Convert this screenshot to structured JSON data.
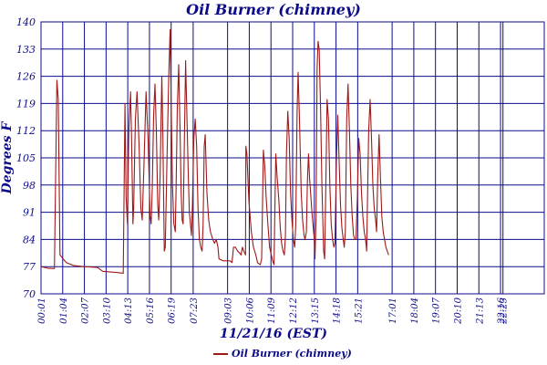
{
  "chart_data": {
    "type": "line",
    "title": "Oil Burner (chimney)",
    "ylabel": "Degrees F",
    "xlabel": "11/21/16 (EST)",
    "ylim": [
      70,
      140
    ],
    "yticks": [
      70,
      77,
      84,
      91,
      98,
      105,
      112,
      119,
      126,
      133,
      140
    ],
    "x_domain_minutes": [
      1,
      1463
    ],
    "xticks": [
      {
        "label": "00:01",
        "minute": 1
      },
      {
        "label": "01:04",
        "minute": 64
      },
      {
        "label": "02:07",
        "minute": 127
      },
      {
        "label": "03:10",
        "minute": 190
      },
      {
        "label": "04:13",
        "minute": 253
      },
      {
        "label": "05:16",
        "minute": 316
      },
      {
        "label": "06:19",
        "minute": 379
      },
      {
        "label": "07:23",
        "minute": 443
      },
      {
        "label": "09:03",
        "minute": 543
      },
      {
        "label": "10:06",
        "minute": 606
      },
      {
        "label": "11:09",
        "minute": 669
      },
      {
        "label": "12:12",
        "minute": 732
      },
      {
        "label": "13:15",
        "minute": 795
      },
      {
        "label": "14:18",
        "minute": 858
      },
      {
        "label": "15:21",
        "minute": 921
      },
      {
        "label": "17:01",
        "minute": 1021
      },
      {
        "label": "18:04",
        "minute": 1084
      },
      {
        "label": "19:07",
        "minute": 1147
      },
      {
        "label": "20:10",
        "minute": 1210
      },
      {
        "label": "21:13",
        "minute": 1273
      },
      {
        "label": "22:16",
        "minute": 1336
      },
      {
        "label": "22:23",
        "minute": 1343
      }
    ],
    "grid": true,
    "legend_position": "bottom-center",
    "series": [
      {
        "name": "Oil Burner (chimney)",
        "color": "#a01818",
        "points": [
          [
            1,
            77
          ],
          [
            20,
            76.6
          ],
          [
            37,
            76.5
          ],
          [
            40,
            76.5
          ],
          [
            47,
            125
          ],
          [
            51,
            120
          ],
          [
            56,
            80
          ],
          [
            65,
            79
          ],
          [
            75,
            78
          ],
          [
            95,
            77.3
          ],
          [
            125,
            77
          ],
          [
            165,
            76.8
          ],
          [
            180,
            75.8
          ],
          [
            220,
            75.5
          ],
          [
            240,
            75.3
          ],
          [
            245,
            119
          ],
          [
            248,
            95
          ],
          [
            252,
            88
          ],
          [
            256,
            112
          ],
          [
            261,
            122
          ],
          [
            264,
            110
          ],
          [
            268,
            88
          ],
          [
            270,
            92
          ],
          [
            275,
            115
          ],
          [
            280,
            122
          ],
          [
            286,
            108
          ],
          [
            291,
            92
          ],
          [
            295,
            89
          ],
          [
            300,
            103
          ],
          [
            306,
            122
          ],
          [
            312,
            110
          ],
          [
            318,
            90
          ],
          [
            321,
            88
          ],
          [
            324,
            97
          ],
          [
            328,
            116
          ],
          [
            332,
            124
          ],
          [
            336,
            112
          ],
          [
            340,
            93
          ],
          [
            343,
            89
          ],
          [
            347,
            100
          ],
          [
            352,
            126
          ],
          [
            355,
            110
          ],
          [
            359,
            81
          ],
          [
            362,
            82
          ],
          [
            367,
            105
          ],
          [
            372,
            126
          ],
          [
            376,
            138
          ],
          [
            379,
            120
          ],
          [
            383,
            98
          ],
          [
            387,
            88
          ],
          [
            391,
            86
          ],
          [
            393,
            95
          ],
          [
            397,
            118
          ],
          [
            401,
            129
          ],
          [
            405,
            112
          ],
          [
            408,
            96
          ],
          [
            411,
            89
          ],
          [
            414,
            88
          ],
          [
            418,
            112
          ],
          [
            421,
            130
          ],
          [
            425,
            115
          ],
          [
            429,
            100
          ],
          [
            432,
            91
          ],
          [
            435,
            88
          ],
          [
            438,
            85
          ],
          [
            441,
            93
          ],
          [
            445,
            110
          ],
          [
            449,
            115
          ],
          [
            453,
            108
          ],
          [
            457,
            92
          ],
          [
            461,
            84
          ],
          [
            465,
            82
          ],
          [
            469,
            81
          ],
          [
            472,
            88
          ],
          [
            475,
            108
          ],
          [
            478,
            111
          ],
          [
            483,
            96
          ],
          [
            488,
            89
          ],
          [
            493,
            86
          ],
          [
            500,
            84
          ],
          [
            505,
            83
          ],
          [
            510,
            84
          ],
          [
            515,
            82
          ],
          [
            518,
            79
          ],
          [
            530,
            78.5
          ],
          [
            550,
            78.5
          ],
          [
            556,
            78
          ],
          [
            560,
            82
          ],
          [
            566,
            82
          ],
          [
            572,
            81
          ],
          [
            578,
            80.5
          ],
          [
            582,
            80
          ],
          [
            586,
            82
          ],
          [
            590,
            81
          ],
          [
            595,
            80
          ],
          [
            596,
            108
          ],
          [
            599,
            106
          ],
          [
            605,
            94
          ],
          [
            612,
            86
          ],
          [
            618,
            82
          ],
          [
            625,
            80
          ],
          [
            630,
            78
          ],
          [
            638,
            77.5
          ],
          [
            642,
            79
          ],
          [
            647,
            107
          ],
          [
            651,
            103
          ],
          [
            655,
            95
          ],
          [
            660,
            88
          ],
          [
            665,
            82
          ],
          [
            670,
            80
          ],
          [
            674,
            78.5
          ],
          [
            678,
            77.5
          ],
          [
            680,
            90
          ],
          [
            683,
            106
          ],
          [
            687,
            100
          ],
          [
            692,
            94
          ],
          [
            696,
            87
          ],
          [
            700,
            83
          ],
          [
            704,
            81
          ],
          [
            708,
            80
          ],
          [
            711,
            85
          ],
          [
            714,
            106
          ],
          [
            718,
            117
          ],
          [
            722,
            110
          ],
          [
            726,
            96
          ],
          [
            730,
            89
          ],
          [
            734,
            84
          ],
          [
            738,
            82
          ],
          [
            741,
            88
          ],
          [
            745,
            117
          ],
          [
            748,
            127
          ],
          [
            752,
            114
          ],
          [
            757,
            96
          ],
          [
            761,
            89
          ],
          [
            765,
            85
          ],
          [
            768,
            84
          ],
          [
            772,
            86
          ],
          [
            775,
            99
          ],
          [
            778,
            106
          ],
          [
            781,
            100
          ],
          [
            785,
            95
          ],
          [
            789,
            90
          ],
          [
            793,
            86
          ],
          [
            795,
            84
          ],
          [
            797,
            79
          ],
          [
            800,
            90
          ],
          [
            803,
            128
          ],
          [
            806,
            135
          ],
          [
            809,
            133
          ],
          [
            813,
            118
          ],
          [
            817,
            98
          ],
          [
            820,
            88
          ],
          [
            822,
            81
          ],
          [
            825,
            79
          ],
          [
            828,
            95
          ],
          [
            832,
            120
          ],
          [
            836,
            115
          ],
          [
            840,
            98
          ],
          [
            844,
            88
          ],
          [
            848,
            84
          ],
          [
            852,
            82
          ],
          [
            855,
            83
          ],
          [
            859,
            104
          ],
          [
            863,
            116
          ],
          [
            867,
            104
          ],
          [
            871,
            93
          ],
          [
            875,
            87
          ],
          [
            879,
            84
          ],
          [
            882,
            82
          ],
          [
            885,
            86
          ],
          [
            889,
            115
          ],
          [
            893,
            124
          ],
          [
            897,
            112
          ],
          [
            901,
            98
          ],
          [
            905,
            90
          ],
          [
            909,
            85
          ],
          [
            913,
            84
          ],
          [
            916,
            84
          ],
          [
            920,
            95
          ],
          [
            924,
            110
          ],
          [
            928,
            106
          ],
          [
            932,
            96
          ],
          [
            936,
            90
          ],
          [
            940,
            86
          ],
          [
            944,
            84
          ],
          [
            947,
            81
          ],
          [
            950,
            97
          ],
          [
            953,
            112
          ],
          [
            957,
            120
          ],
          [
            961,
            110
          ],
          [
            965,
            98
          ],
          [
            969,
            92
          ],
          [
            973,
            89
          ],
          [
            976,
            86
          ],
          [
            979,
            100
          ],
          [
            983,
            111
          ],
          [
            987,
            100
          ],
          [
            991,
            90
          ],
          [
            995,
            86
          ],
          [
            999,
            84
          ],
          [
            1003,
            82
          ],
          [
            1007,
            81
          ],
          [
            1011,
            80
          ]
        ]
      }
    ]
  }
}
